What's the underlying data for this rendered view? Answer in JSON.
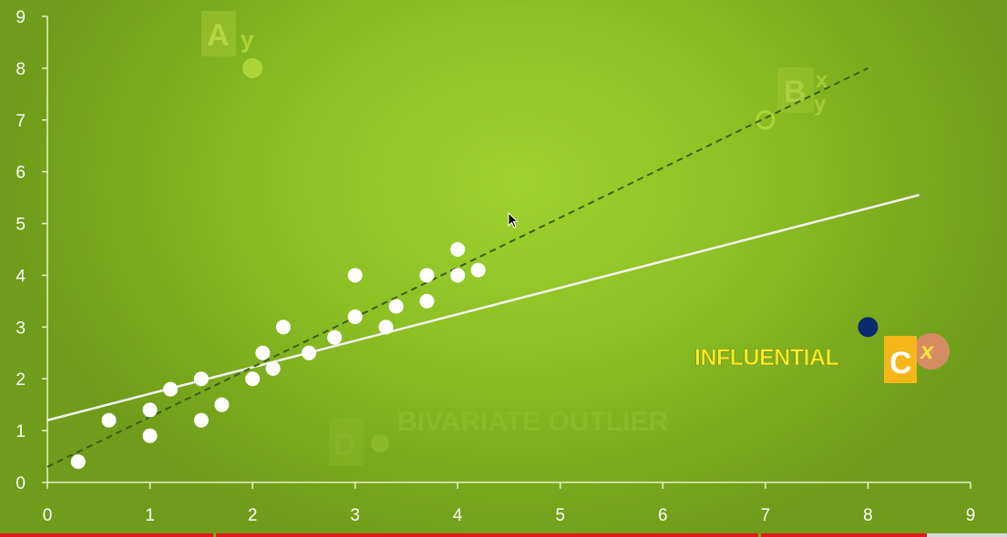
{
  "chart_data": {
    "type": "scatter",
    "title": "",
    "xlabel": "",
    "ylabel": "",
    "xlim": [
      0,
      9
    ],
    "ylim": [
      0,
      9
    ],
    "x_ticks": [
      0,
      1,
      2,
      3,
      4,
      5,
      6,
      7,
      8,
      9
    ],
    "y_ticks": [
      0,
      1,
      2,
      3,
      4,
      5,
      6,
      7,
      8,
      9
    ],
    "grid": false,
    "series": [
      {
        "color": "#ffffff",
        "points": [
          [
            0.3,
            0.4
          ],
          [
            0.6,
            1.2
          ],
          [
            1.0,
            0.9
          ],
          [
            1.0,
            1.4
          ],
          [
            1.2,
            1.8
          ],
          [
            1.5,
            1.2
          ],
          [
            1.5,
            2.0
          ],
          [
            1.7,
            1.5
          ],
          [
            2.0,
            2.0
          ],
          [
            2.1,
            2.5
          ],
          [
            2.2,
            2.2
          ],
          [
            2.3,
            3.0
          ],
          [
            2.55,
            2.5
          ],
          [
            2.8,
            2.8
          ],
          [
            3.0,
            3.2
          ],
          [
            3.0,
            4.0
          ],
          [
            3.3,
            3.0
          ],
          [
            3.4,
            3.4
          ],
          [
            3.7,
            3.5
          ],
          [
            3.7,
            4.0
          ],
          [
            4.0,
            4.0
          ],
          [
            4.0,
            4.5
          ],
          [
            4.2,
            4.1
          ]
        ]
      },
      {
        "color": "#0b2a6e",
        "points": [
          [
            8.0,
            3.0
          ]
        ]
      }
    ],
    "fit_lines": [
      {
        "style": "solid",
        "color": "#f2f2f2",
        "from": [
          0,
          1.2
        ],
        "to": [
          8.5,
          5.55
        ]
      },
      {
        "style": "dashed",
        "color": "#3a5e12",
        "from": [
          0,
          0.3
        ],
        "to": [
          8.0,
          8.0
        ]
      }
    ],
    "annotations": {
      "influential": {
        "text": "INFLUENTIAL",
        "color": "#f2ee2a"
      },
      "c_badge": {
        "letter": "C",
        "superscript": "x",
        "box_color": "#f5b61a",
        "circle_color": "#e08a6a"
      },
      "faint_a": {
        "letter": "A",
        "superscript": "y",
        "point": [
          2.0,
          8.0
        ]
      },
      "faint_b": {
        "letter": "B",
        "superscript_top": "x",
        "superscript_bottom": "y",
        "point": [
          7.0,
          7.0
        ]
      },
      "faint_d": {
        "letter": "D",
        "text": "BIVARIATE OUTLIER",
        "point": [
          3.25,
          0.75
        ]
      }
    }
  },
  "player": {
    "progress": 0.92,
    "chapter_marks": [
      0.212,
      0.753
    ]
  }
}
